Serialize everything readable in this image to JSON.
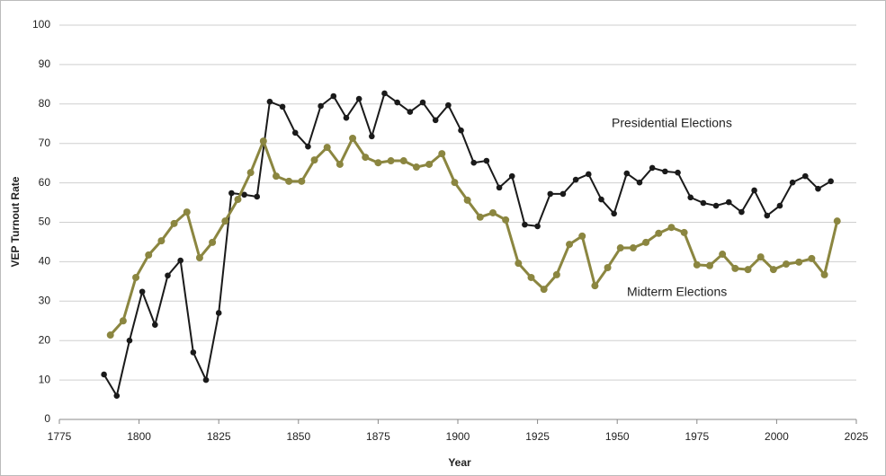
{
  "chart_data": {
    "type": "line",
    "xlabel": "Year",
    "ylabel": "VEP Turnout Rate",
    "xlim": [
      1775,
      2025
    ],
    "xticks": [
      1775,
      1800,
      1825,
      1850,
      1875,
      1900,
      1925,
      1950,
      1975,
      2000,
      2025
    ],
    "ylim": [
      0,
      100
    ],
    "yticks": [
      0,
      10,
      20,
      30,
      40,
      50,
      60,
      70,
      80,
      90,
      100
    ],
    "grid": true,
    "annotations": [
      "Presidential Elections",
      "Midterm Elections"
    ],
    "series": [
      {
        "name": "Presidential Elections",
        "color": "#1a1a1a",
        "x": [
          1789,
          1793,
          1797,
          1801,
          1805,
          1809,
          1813,
          1817,
          1821,
          1825,
          1829,
          1833,
          1837,
          1841,
          1845,
          1849,
          1853,
          1857,
          1861,
          1865,
          1869,
          1873,
          1877,
          1881,
          1885,
          1889,
          1893,
          1897,
          1901,
          1905,
          1909,
          1913,
          1917,
          1921,
          1925,
          1929,
          1933,
          1937,
          1941,
          1945,
          1949,
          1953,
          1957,
          1961,
          1965,
          1969,
          1973,
          1977,
          1981,
          1985,
          1989,
          1993,
          1997,
          2001,
          2005,
          2009,
          2013,
          2017
        ],
        "values": [
          11.4,
          6,
          20,
          32.4,
          24,
          36.5,
          40.3,
          17,
          10,
          27,
          57.4,
          57,
          56.5,
          80.6,
          79.3,
          72.7,
          69.2,
          79.5,
          82,
          76.5,
          81.3,
          71.8,
          82.7,
          80.4,
          78,
          80.4,
          75.9,
          79.7,
          73.3,
          65.1,
          65.6,
          58.8,
          61.7,
          49.4,
          49,
          57.2,
          57.2,
          60.8,
          62.2,
          55.8,
          52.2,
          62.4,
          60.1,
          63.8,
          62.9,
          62.6,
          56.3,
          54.9,
          54.2,
          55.1,
          52.6,
          58.1,
          51.7,
          54.2,
          60.1,
          61.7,
          58.5,
          60.4
        ]
      },
      {
        "name": "Midterm Elections",
        "color": "#8b8640",
        "x": [
          1791,
          1795,
          1799,
          1803,
          1807,
          1811,
          1815,
          1819,
          1823,
          1827,
          1831,
          1835,
          1839,
          1843,
          1847,
          1851,
          1855,
          1859,
          1863,
          1867,
          1871,
          1875,
          1879,
          1883,
          1887,
          1891,
          1895,
          1899,
          1903,
          1907,
          1911,
          1915,
          1919,
          1923,
          1927,
          1931,
          1935,
          1939,
          1943,
          1947,
          1951,
          1955,
          1959,
          1963,
          1967,
          1971,
          1975,
          1979,
          1983,
          1987,
          1991,
          1995,
          1999,
          2003,
          2007,
          2011,
          2015,
          2019
        ],
        "values": [
          21.4,
          25,
          36,
          41.7,
          45.3,
          49.7,
          52.6,
          41,
          44.9,
          50.3,
          55.8,
          62.6,
          70.6,
          61.7,
          60.4,
          60.4,
          65.8,
          69,
          64.7,
          71.3,
          66.5,
          65.1,
          65.6,
          65.6,
          64,
          64.7,
          67.4,
          60.1,
          55.6,
          51.3,
          52.4,
          50.6,
          39.6,
          36,
          33,
          36.7,
          44.4,
          46.5,
          33.9,
          38.5,
          43.5,
          43.5,
          44.9,
          47.2,
          48.7,
          47.4,
          39.2,
          39,
          41.9,
          38.3,
          38,
          41.2,
          38,
          39.4,
          39.9,
          40.8,
          36.7,
          50.3
        ]
      }
    ]
  }
}
